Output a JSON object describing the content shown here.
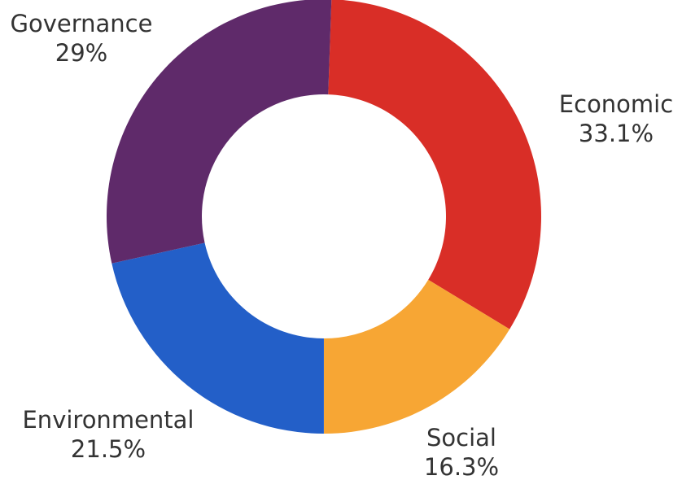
{
  "chart_data": {
    "type": "donut",
    "categories": [
      "Economic",
      "Social",
      "Environmental",
      "Governance"
    ],
    "values": [
      33.1,
      16.3,
      21.5,
      29
    ],
    "value_labels": [
      "33.1%",
      "16.3%",
      "21.5%",
      "29%"
    ],
    "colors": [
      "#d92e27",
      "#f7a634",
      "#235fc8",
      "#5f2a6a"
    ]
  }
}
